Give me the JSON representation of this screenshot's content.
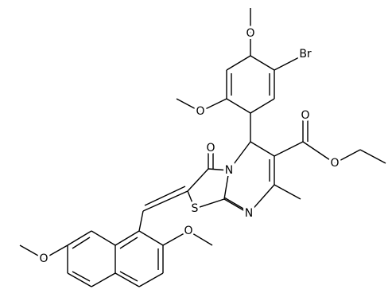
{
  "atoms": [
    "O",
    "Br",
    "O",
    "O",
    "O",
    "O",
    "N",
    "S",
    "N",
    "O",
    "O"
  ]
}
